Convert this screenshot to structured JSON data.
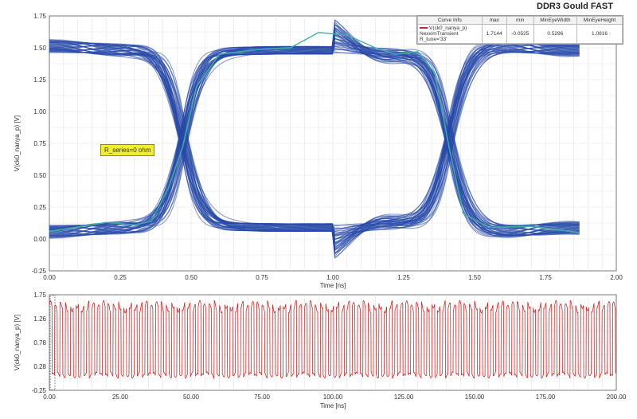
{
  "title": "DDR3 Gould FAST",
  "annotation": "R_series=0 ohm",
  "legend": {
    "headers": [
      "Curve Info",
      "max",
      "min",
      "MinEyeWidth",
      "MinEyeHeight"
    ],
    "row": {
      "name": "V(ck0_nanya_p)",
      "line2": "NexximTransient",
      "line3": "R_tune='33'",
      "max": "1.7144",
      "min": "-0.0525",
      "min_eye_width": "0.5296",
      "min_eye_height": "1.0816"
    }
  },
  "colors": {
    "eye": "#2748a8",
    "wave": "#d02a2a",
    "trace_green": "#2aa87a",
    "trace_cyan": "#5fc4e0"
  },
  "chart_data": [
    {
      "type": "line",
      "title": "DDR3 Gould FAST",
      "xlabel": "Time [ns]",
      "ylabel": "V(ck0_nanya_p) [V]",
      "xlim": [
        0,
        2.0
      ],
      "ylim": [
        -0.25,
        1.75
      ],
      "x_ticks": [
        "0.00",
        "0.25",
        "0.50",
        "0.75",
        "1.00",
        "1.25",
        "1.50",
        "1.75",
        "2.00"
      ],
      "y_ticks": [
        "-0.25",
        "0.00",
        "0.25",
        "0.50",
        "0.75",
        "1.00",
        "1.25",
        "1.50",
        "1.75"
      ],
      "grid": true,
      "legend_position": "top-right",
      "series": [
        {
          "name": "V(ck0_nanya_p)",
          "x": [
            0,
            0.12,
            0.2,
            0.3,
            0.36,
            0.42,
            0.47,
            0.52,
            0.6,
            0.75,
            0.85,
            0.95,
            1.05,
            1.15,
            1.22,
            1.3,
            1.36,
            1.41,
            1.46,
            1.55,
            1.7,
            1.87
          ],
          "y": [
            0.06,
            0.1,
            0.13,
            0.11,
            0.14,
            0.4,
            0.72,
            1.2,
            1.45,
            1.49,
            1.5,
            1.62,
            1.6,
            1.5,
            1.45,
            1.47,
            1.3,
            0.72,
            0.2,
            0.09,
            0.1,
            0.05
          ]
        }
      ]
    },
    {
      "type": "line",
      "xlabel": "Time [ns]",
      "ylabel": "V(ck0_nanya_p) [V]",
      "xlim": [
        0,
        200
      ],
      "ylim": [
        -0.25,
        1.75
      ],
      "x_ticks": [
        "0.00",
        "25.00",
        "50.00",
        "75.00",
        "100.00",
        "125.00",
        "150.00",
        "175.00",
        "200.00"
      ],
      "y_ticks": [
        "-0.25",
        "0.28",
        "0.78",
        "1.26",
        "1.75"
      ],
      "grid": true,
      "series": [
        {
          "name": "V(ck0_nanya_p)",
          "period_ns": 1.875,
          "high": 1.5,
          "low": 0.07
        }
      ]
    }
  ]
}
